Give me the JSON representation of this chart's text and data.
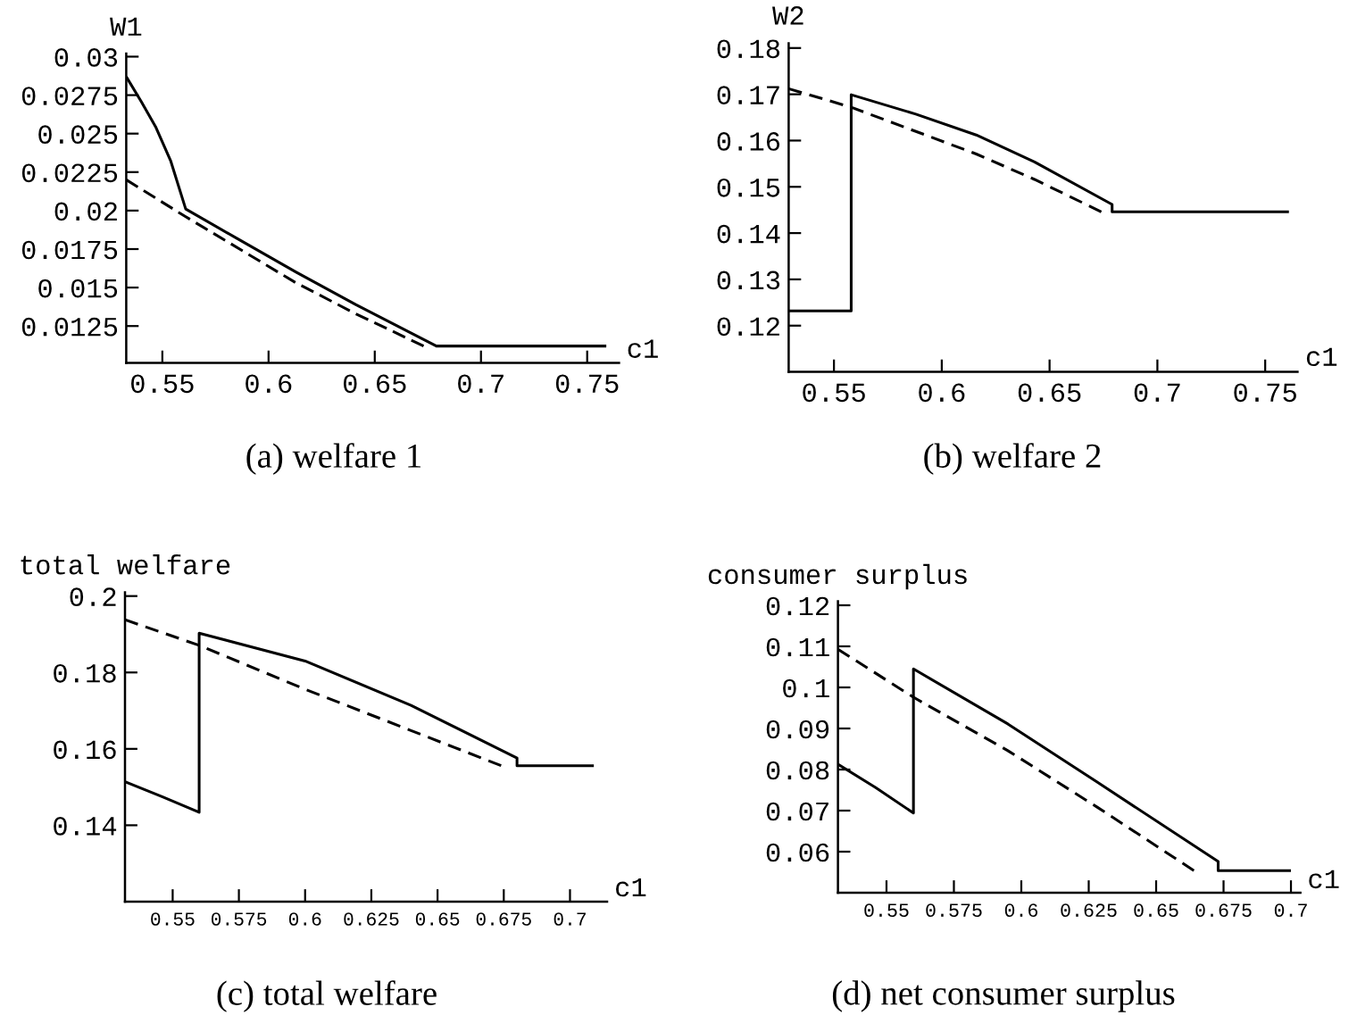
{
  "chart_data": [
    {
      "type": "line",
      "title": "(a) welfare 1",
      "xlabel": "c1",
      "ylabel": "W1",
      "xlim": [
        0.533,
        0.765
      ],
      "ylim": [
        0.0101,
        0.0302
      ],
      "xticks": [
        0.55,
        0.6,
        0.65,
        0.7,
        0.75
      ],
      "yticks": [
        0.0125,
        0.015,
        0.0175,
        0.02,
        0.0225,
        0.025,
        0.0275,
        0.03
      ],
      "series": [
        {
          "color": "#000000",
          "line_style": "solid",
          "x": [
            0.533,
            0.54,
            0.547,
            0.554,
            0.561,
            0.585,
            0.613,
            0.641,
            0.679,
            0.759
          ],
          "values": [
            0.0287,
            0.0271,
            0.0254,
            0.0232,
            0.0201,
            0.0182,
            0.016,
            0.0139,
            0.0112,
            0.0112
          ]
        },
        {
          "color": "#000000",
          "line_style": "dashed",
          "x": [
            0.533,
            0.561,
            0.613,
            0.641,
            0.673
          ],
          "values": [
            0.022,
            0.0196,
            0.0153,
            0.0133,
            0.0112
          ]
        }
      ]
    },
    {
      "type": "line",
      "title": "(b) welfare 2",
      "xlabel": "c1",
      "ylabel": "W2",
      "xlim": [
        0.529,
        0.765
      ],
      "ylim": [
        0.11,
        0.181
      ],
      "xticks": [
        0.55,
        0.6,
        0.65,
        0.7,
        0.75
      ],
      "yticks": [
        0.12,
        0.13,
        0.14,
        0.15,
        0.16,
        0.17,
        0.18
      ],
      "series": [
        {
          "color": "#000000",
          "line_style": "solid",
          "x": [
            0.529,
            0.558,
            0.558,
            0.588,
            0.616,
            0.643,
            0.679,
            0.679,
            0.761
          ],
          "values": [
            0.1232,
            0.1232,
            0.1699,
            0.1657,
            0.1612,
            0.1554,
            0.1462,
            0.1446,
            0.1446
          ]
        },
        {
          "color": "#000000",
          "line_style": "dashed",
          "x": [
            0.529,
            0.558,
            0.616,
            0.643,
            0.674
          ],
          "values": [
            0.1712,
            0.1672,
            0.1571,
            0.1516,
            0.1446
          ]
        }
      ]
    },
    {
      "type": "line",
      "title": "(c) total welfare",
      "xlabel": "c1",
      "ylabel": "total welfare",
      "xlim": [
        0.532,
        0.714
      ],
      "ylim": [
        0.12,
        0.201
      ],
      "xticks": [
        0.55,
        0.575,
        0.6,
        0.625,
        0.65,
        0.675,
        0.7
      ],
      "yticks": [
        0.14,
        0.16,
        0.18,
        0.2
      ],
      "series": [
        {
          "color": "#000000",
          "line_style": "solid",
          "x": [
            0.532,
            0.546,
            0.56,
            0.56,
            0.6,
            0.64,
            0.68,
            0.68,
            0.709
          ],
          "values": [
            0.1514,
            0.1475,
            0.1434,
            0.1903,
            0.183,
            0.1714,
            0.1576,
            0.1556,
            0.1556
          ]
        },
        {
          "color": "#000000",
          "line_style": "dashed",
          "x": [
            0.532,
            0.56,
            0.6,
            0.64,
            0.674
          ],
          "values": [
            0.1938,
            0.1871,
            0.1756,
            0.1648,
            0.1556
          ]
        }
      ]
    },
    {
      "type": "line",
      "title": "(d) net consumer surplus",
      "xlabel": "c1",
      "ylabel": "consumer surplus",
      "xlim": [
        0.532,
        0.7035
      ],
      "ylim": [
        0.05,
        0.121
      ],
      "xticks": [
        0.55,
        0.575,
        0.6,
        0.625,
        0.65,
        0.675,
        0.7
      ],
      "yticks": [
        0.06,
        0.07,
        0.08,
        0.09,
        0.1,
        0.11,
        0.12
      ],
      "series": [
        {
          "color": "#000000",
          "line_style": "solid",
          "x": [
            0.532,
            0.546,
            0.56,
            0.56,
            0.595,
            0.628,
            0.673,
            0.673,
            0.7
          ],
          "values": [
            0.0813,
            0.0756,
            0.0694,
            0.1045,
            0.0911,
            0.077,
            0.0576,
            0.0554,
            0.0554
          ]
        },
        {
          "color": "#000000",
          "line_style": "dashed",
          "x": [
            0.532,
            0.56,
            0.595,
            0.628,
            0.664
          ],
          "values": [
            0.1093,
            0.0976,
            0.0846,
            0.0709,
            0.0554
          ]
        }
      ]
    }
  ]
}
